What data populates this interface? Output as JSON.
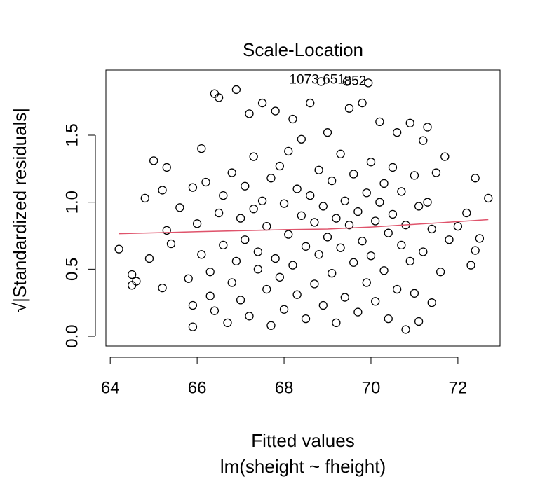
{
  "chart_data": {
    "type": "scatter",
    "title": "Scale-Location",
    "x_label": "Fitted values",
    "subtitle": "lm(sheight ~ fheight)",
    "y_label": "√|Standardized residuals|",
    "xlim": [
      63.9,
      72.97
    ],
    "ylim": [
      -0.073,
      1.986
    ],
    "xticks": [
      64,
      66,
      68,
      70,
      72
    ],
    "yticks": [
      {
        "value": 0,
        "label": "0.0"
      },
      {
        "value": 0.5,
        "label": "0.5"
      },
      {
        "value": 1,
        "label": "1.0"
      },
      {
        "value": 1.5,
        "label": "1.5"
      }
    ],
    "color": "#000000",
    "x": [
      64.2,
      64.5,
      64.5,
      64.6,
      64.8,
      64.9,
      65.0,
      65.2,
      65.2,
      65.3,
      65.3,
      65.4,
      65.6,
      65.8,
      65.9,
      65.9,
      65.9,
      66.0,
      66.1,
      66.1,
      66.2,
      66.3,
      66.3,
      66.4,
      66.4,
      66.5,
      66.5,
      66.6,
      66.6,
      66.7,
      66.8,
      66.8,
      66.9,
      66.9,
      67.0,
      67.0,
      67.1,
      67.1,
      67.2,
      67.2,
      67.3,
      67.3,
      67.4,
      67.4,
      67.5,
      67.5,
      67.6,
      67.6,
      67.7,
      67.7,
      67.8,
      67.8,
      67.9,
      67.9,
      68.0,
      68.0,
      68.1,
      68.1,
      68.2,
      68.2,
      68.3,
      68.3,
      68.4,
      68.4,
      68.5,
      68.5,
      68.6,
      68.6,
      68.7,
      68.7,
      68.8,
      68.8,
      68.85,
      68.9,
      68.9,
      69.0,
      69.0,
      69.1,
      69.1,
      69.2,
      69.2,
      69.3,
      69.3,
      69.4,
      69.4,
      69.45,
      69.5,
      69.5,
      69.6,
      69.6,
      69.7,
      69.7,
      69.8,
      69.8,
      69.9,
      69.9,
      69.94,
      70.0,
      70.0,
      70.1,
      70.1,
      70.2,
      70.2,
      70.3,
      70.3,
      70.4,
      70.4,
      70.5,
      70.5,
      70.6,
      70.6,
      70.7,
      70.7,
      70.8,
      70.8,
      70.9,
      70.9,
      71.0,
      71.0,
      71.1,
      71.1,
      71.2,
      71.2,
      71.3,
      71.3,
      71.4,
      71.4,
      71.5,
      71.6,
      71.7,
      71.8,
      72.0,
      72.2,
      72.3,
      72.4,
      72.4,
      72.5,
      72.7
    ],
    "values": [
      0.65,
      0.46,
      0.38,
      0.41,
      1.03,
      0.58,
      1.31,
      1.09,
      0.36,
      1.26,
      0.79,
      0.69,
      0.96,
      0.43,
      0.23,
      0.07,
      1.11,
      0.84,
      1.4,
      0.61,
      1.15,
      0.48,
      0.3,
      1.81,
      0.19,
      1.78,
      0.92,
      1.05,
      0.68,
      0.1,
      1.22,
      0.4,
      0.56,
      1.84,
      0.88,
      0.27,
      1.12,
      0.72,
      1.66,
      0.15,
      1.34,
      0.95,
      0.5,
      0.63,
      1.74,
      1.01,
      0.35,
      0.82,
      1.18,
      0.08,
      1.68,
      0.58,
      1.27,
      0.44,
      0.99,
      0.2,
      1.38,
      0.76,
      1.62,
      0.53,
      1.1,
      0.31,
      0.9,
      1.47,
      0.67,
      0.13,
      1.74,
      1.05,
      0.85,
      0.39,
      1.24,
      0.61,
      1.9,
      0.97,
      0.23,
      1.52,
      0.74,
      1.16,
      0.47,
      0.88,
      0.1,
      1.36,
      0.66,
      1.01,
      0.29,
      1.9,
      0.83,
      1.7,
      0.55,
      1.21,
      0.93,
      0.18,
      1.74,
      0.71,
      1.07,
      0.4,
      1.89,
      0.6,
      1.3,
      0.86,
      0.26,
      1.6,
      1.0,
      0.49,
      1.14,
      0.77,
      0.13,
      1.26,
      0.91,
      0.35,
      1.52,
      0.68,
      1.08,
      0.05,
      0.83,
      1.59,
      0.56,
      1.2,
      0.32,
      0.97,
      0.11,
      1.46,
      0.63,
      1.0,
      1.56,
      0.25,
      0.8,
      1.22,
      0.48,
      1.34,
      0.72,
      0.82,
      0.92,
      0.53,
      1.18,
      0.64,
      0.73,
      1.03
    ],
    "smooth": {
      "color": "#df536b",
      "x": [
        64.2,
        66,
        68,
        69,
        70,
        71,
        72,
        72.7
      ],
      "values": [
        0.765,
        0.78,
        0.795,
        0.8,
        0.815,
        0.835,
        0.855,
        0.87
      ]
    },
    "annotations": [
      {
        "text": "1073",
        "x": 68.85,
        "y": 1.9
      },
      {
        "text": "651",
        "x": 69.45,
        "y": 1.9
      },
      {
        "text": "852",
        "x": 69.94,
        "y": 1.89
      }
    ]
  }
}
